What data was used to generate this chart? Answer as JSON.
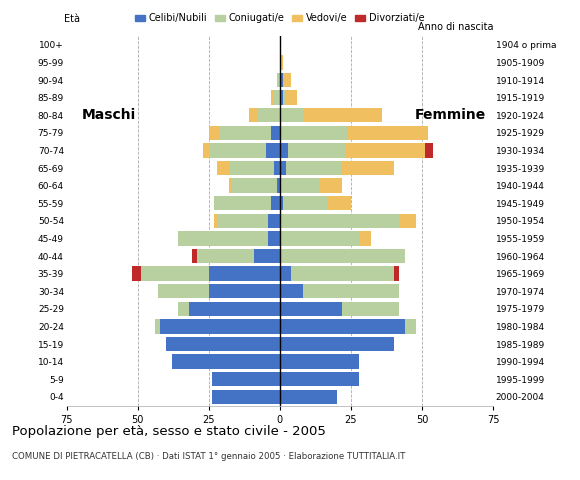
{
  "age_groups": [
    "0-4",
    "5-9",
    "10-14",
    "15-19",
    "20-24",
    "25-29",
    "30-34",
    "35-39",
    "40-44",
    "45-49",
    "50-54",
    "55-59",
    "60-64",
    "65-69",
    "70-74",
    "75-79",
    "80-84",
    "85-89",
    "90-94",
    "95-99",
    "100+"
  ],
  "birth_years": [
    "2000-2004",
    "1995-1999",
    "1990-1994",
    "1985-1989",
    "1980-1984",
    "1975-1979",
    "1970-1974",
    "1965-1969",
    "1960-1964",
    "1955-1959",
    "1950-1954",
    "1945-1949",
    "1940-1944",
    "1935-1939",
    "1930-1934",
    "1925-1929",
    "1920-1924",
    "1915-1919",
    "1910-1914",
    "1905-1909",
    "1904 o prima"
  ],
  "male_celibe": [
    24,
    24,
    38,
    40,
    42,
    32,
    25,
    25,
    9,
    4,
    4,
    3,
    1,
    2,
    5,
    3,
    0,
    0,
    0,
    0,
    0
  ],
  "male_coniugato": [
    0,
    0,
    0,
    0,
    2,
    4,
    18,
    24,
    20,
    32,
    18,
    20,
    16,
    16,
    20,
    18,
    8,
    2,
    1,
    0,
    0
  ],
  "male_vedovo": [
    0,
    0,
    0,
    0,
    0,
    0,
    0,
    0,
    0,
    0,
    1,
    0,
    1,
    4,
    2,
    4,
    3,
    1,
    0,
    0,
    0
  ],
  "male_divorziato": [
    0,
    0,
    0,
    0,
    0,
    0,
    0,
    3,
    2,
    0,
    0,
    0,
    0,
    0,
    0,
    0,
    0,
    0,
    0,
    0,
    0
  ],
  "female_nubile": [
    20,
    28,
    28,
    40,
    44,
    22,
    8,
    4,
    0,
    0,
    0,
    1,
    0,
    2,
    3,
    0,
    0,
    1,
    1,
    0,
    0
  ],
  "female_coniugata": [
    0,
    0,
    0,
    0,
    4,
    20,
    34,
    36,
    44,
    28,
    42,
    16,
    14,
    20,
    20,
    24,
    8,
    1,
    0,
    0,
    0
  ],
  "female_vedova": [
    0,
    0,
    0,
    0,
    0,
    0,
    0,
    0,
    0,
    4,
    6,
    8,
    8,
    18,
    28,
    28,
    28,
    4,
    3,
    1,
    0
  ],
  "female_divorziata": [
    0,
    0,
    0,
    0,
    0,
    0,
    0,
    2,
    0,
    0,
    0,
    0,
    0,
    0,
    3,
    0,
    0,
    0,
    0,
    0,
    0
  ],
  "color_celibe": "#4472c4",
  "color_coniugato": "#b8cfa0",
  "color_vedovo": "#f0c060",
  "color_divorziato": "#c0292a",
  "bg_color": "#ffffff",
  "grid_color": "#aaaaaa",
  "xlim": 75,
  "bar_height": 0.82,
  "title": "Popolazione per età, sesso e stato civile - 2005",
  "subtitle": "COMUNE DI PIETRACATELLA (CB) · Dati ISTAT 1° gennaio 2005 · Elaborazione TUTTITALIA.IT",
  "label_maschi": "Maschi",
  "label_femmine": "Femmine",
  "label_eta": "Età",
  "label_anno": "Anno di nascita",
  "legend_labels": [
    "Celibi/Nubili",
    "Coniugati/e",
    "Vedovi/e",
    "Divorziati/e"
  ]
}
